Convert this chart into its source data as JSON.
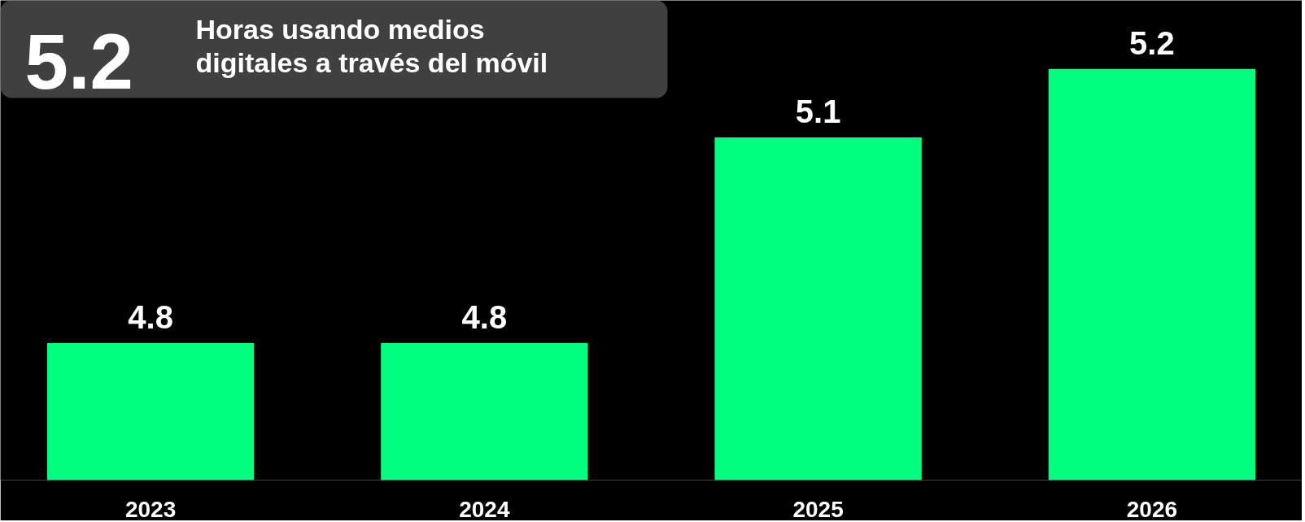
{
  "chart_data": {
    "type": "bar",
    "title": "5.2",
    "subtitle": "Horas usando medios digitales a través del móvil",
    "categories": [
      "2023",
      "2024",
      "2025",
      "2026"
    ],
    "values": [
      4.8,
      4.8,
      5.1,
      5.2
    ],
    "color": "#00ff7f",
    "ylim": [
      4.6,
      5.3
    ],
    "tick_labels": "x",
    "grid": false,
    "data_labels": true
  }
}
